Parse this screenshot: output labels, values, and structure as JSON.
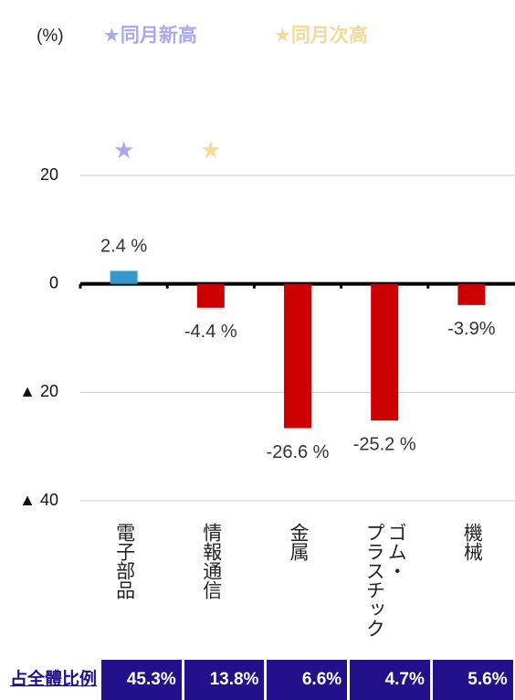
{
  "chart_data": {
    "type": "bar",
    "unit_label": "(%)",
    "legend": [
      {
        "name": "★同月新高",
        "color": "#a9a9ee"
      },
      {
        "name": "★同月次高",
        "color": "#f3d99b"
      }
    ],
    "categories": [
      "電子部品",
      "情報通信",
      "金属",
      "ゴム・プラスチック",
      "機械"
    ],
    "values": [
      2.4,
      -4.4,
      -26.6,
      -25.2,
      -3.9
    ],
    "value_labels": [
      "2.4 %",
      "-4.4 %",
      "-26.6 %",
      "-25.2 %",
      "-3.9%"
    ],
    "colors": [
      "#3399cc",
      "#cc0000",
      "#cc0000",
      "#cc0000",
      "#cc0000"
    ],
    "markers": [
      "★",
      "★",
      null,
      null,
      null
    ],
    "marker_colors": [
      "#a9a9ee",
      "#f3d99b",
      null,
      null,
      null
    ],
    "ylim": [
      -40,
      20
    ],
    "yticks": [
      20,
      0,
      {
        "value": -20,
        "label": "▲ 20"
      },
      {
        "value": -40,
        "label": "▲ 40"
      }
    ],
    "grid": true,
    "share_label": "占全體比例",
    "shares": [
      "45.3%",
      "13.8%",
      "6.6%",
      "4.7%",
      "5.6%"
    ]
  }
}
